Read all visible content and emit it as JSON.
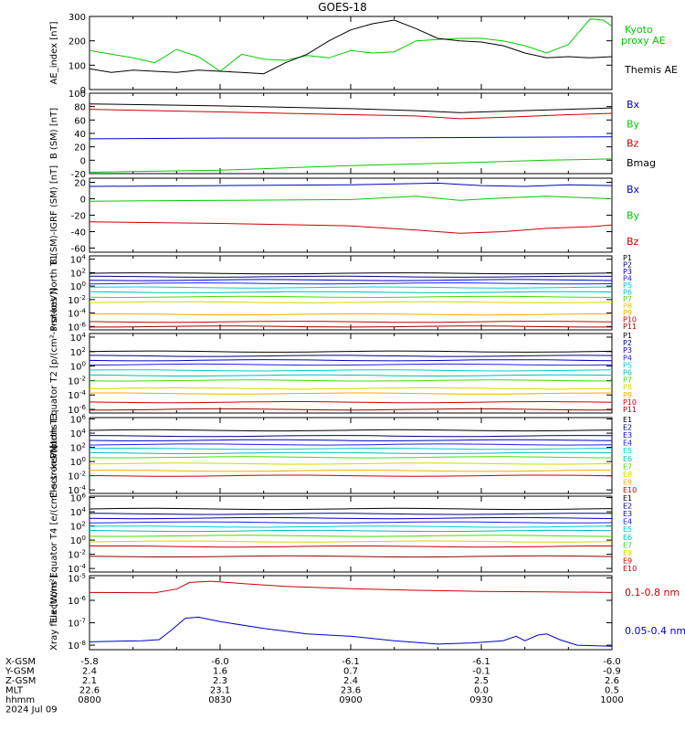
{
  "title": "GOES-18",
  "footer": {
    "row_labels": [
      "X-GSM",
      "Y-GSM",
      "Z-GSM",
      "MLT",
      "hhmm",
      "2024 Jul 09"
    ],
    "columns": [
      [
        "-5.8",
        "2.4",
        "2.1",
        "22.6",
        "0800"
      ],
      [
        "-6.0",
        "1.6",
        "2.3",
        "23.1",
        "0830"
      ],
      [
        "-6.1",
        "0.7",
        "2.4",
        "23.6",
        "0900"
      ],
      [
        "-6.1",
        "-0.1",
        "2.5",
        "0.0",
        "0930"
      ],
      [
        "-6.0",
        "-0.9",
        "2.6",
        "0.5",
        "1000"
      ]
    ]
  },
  "colors": {
    "black": "#000000",
    "green": "#00cc00",
    "blue": "#0000cc",
    "red": "#cc0000",
    "navy": "#000080",
    "purple": "#880088",
    "royal": "#2020ee",
    "cyan": "#00cccc",
    "teal": "#00bbbb",
    "lime": "#44dd00",
    "yellow": "#d6d600",
    "orange": "#ffaa00",
    "maroon": "#990000"
  },
  "chart_data": [
    {
      "type": "line",
      "title": "",
      "ylabel": "AE_index [nT]",
      "x_time_range": [
        "0800",
        "1000"
      ],
      "ylim": [
        0,
        300
      ],
      "yticks": [
        "0",
        "100",
        "200",
        "300"
      ],
      "series": [
        {
          "name": "Kyoto proxy AE",
          "color": "green",
          "values": [
            [
              0,
              160
            ],
            [
              5,
              145
            ],
            [
              10,
              130
            ],
            [
              15,
              110
            ],
            [
              20,
              165
            ],
            [
              25,
              135
            ],
            [
              30,
              75
            ],
            [
              35,
              145
            ],
            [
              40,
              125
            ],
            [
              45,
              120
            ],
            [
              50,
              140
            ],
            [
              55,
              130
            ],
            [
              60,
              160
            ],
            [
              65,
              150
            ],
            [
              70,
              155
            ],
            [
              75,
              200
            ],
            [
              80,
              205
            ],
            [
              85,
              210
            ],
            [
              90,
              210
            ],
            [
              95,
              200
            ],
            [
              100,
              180
            ],
            [
              105,
              150
            ],
            [
              110,
              185
            ],
            [
              115,
              290
            ],
            [
              118,
              285
            ],
            [
              120,
              260
            ]
          ]
        },
        {
          "name": "Themis AE",
          "color": "black",
          "values": [
            [
              0,
              85
            ],
            [
              5,
              70
            ],
            [
              10,
              80
            ],
            [
              15,
              75
            ],
            [
              20,
              70
            ],
            [
              25,
              80
            ],
            [
              30,
              75
            ],
            [
              35,
              70
            ],
            [
              40,
              65
            ],
            [
              45,
              110
            ],
            [
              50,
              145
            ],
            [
              55,
              200
            ],
            [
              60,
              245
            ],
            [
              65,
              270
            ],
            [
              70,
              285
            ],
            [
              75,
              250
            ],
            [
              80,
              210
            ],
            [
              85,
              200
            ],
            [
              90,
              195
            ],
            [
              95,
              180
            ],
            [
              100,
              150
            ],
            [
              105,
              130
            ],
            [
              110,
              135
            ],
            [
              115,
              130
            ],
            [
              120,
              135
            ]
          ]
        }
      ]
    },
    {
      "type": "line",
      "ylabel": "B (SM) [nT]",
      "ylim": [
        -20,
        100
      ],
      "yticks": [
        "-20",
        "0",
        "20",
        "40",
        "60",
        "80",
        "100"
      ],
      "series": [
        {
          "name": "Bx",
          "color": "blue",
          "values": [
            [
              0,
              32
            ],
            [
              30,
              33
            ],
            [
              60,
              33
            ],
            [
              90,
              34
            ],
            [
              120,
              35
            ]
          ]
        },
        {
          "name": "By",
          "color": "green",
          "values": [
            [
              0,
              -18
            ],
            [
              30,
              -15
            ],
            [
              60,
              -8
            ],
            [
              90,
              -3
            ],
            [
              105,
              0
            ],
            [
              120,
              2
            ]
          ]
        },
        {
          "name": "Bz",
          "color": "red",
          "values": [
            [
              0,
              76
            ],
            [
              30,
              72
            ],
            [
              60,
              68
            ],
            [
              75,
              66
            ],
            [
              85,
              62
            ],
            [
              95,
              64
            ],
            [
              110,
              68
            ],
            [
              120,
              70
            ]
          ]
        },
        {
          "name": "Bmag",
          "color": "black",
          "values": [
            [
              0,
              84
            ],
            [
              30,
              81
            ],
            [
              60,
              77
            ],
            [
              75,
              74
            ],
            [
              85,
              71
            ],
            [
              95,
              73
            ],
            [
              110,
              76
            ],
            [
              120,
              78
            ]
          ]
        }
      ]
    },
    {
      "type": "line",
      "ylabel": "B (SM)-IGRF (SM) [nT]",
      "ylim": [
        -65,
        25
      ],
      "yticks": [
        "-60",
        "-40",
        "-20",
        "0",
        "20"
      ],
      "series": [
        {
          "name": "Bx",
          "color": "blue",
          "values": [
            [
              0,
              15
            ],
            [
              30,
              16
            ],
            [
              60,
              17
            ],
            [
              80,
              19
            ],
            [
              90,
              16
            ],
            [
              100,
              15
            ],
            [
              110,
              17
            ],
            [
              120,
              16
            ]
          ]
        },
        {
          "name": "By",
          "color": "green",
          "values": [
            [
              0,
              -3
            ],
            [
              30,
              -2
            ],
            [
              60,
              -1
            ],
            [
              75,
              3
            ],
            [
              85,
              -2
            ],
            [
              95,
              1
            ],
            [
              105,
              3
            ],
            [
              120,
              0
            ]
          ]
        },
        {
          "name": "Bz",
          "color": "red",
          "values": [
            [
              0,
              -28
            ],
            [
              30,
              -30
            ],
            [
              60,
              -33
            ],
            [
              75,
              -38
            ],
            [
              85,
              -42
            ],
            [
              95,
              -40
            ],
            [
              105,
              -36
            ],
            [
              115,
              -34
            ],
            [
              120,
              -32
            ]
          ]
        }
      ]
    },
    {
      "type": "line",
      "ylabel": "Protons North T1",
      "log": true,
      "ylim_exp": [
        -6.5,
        4.5
      ],
      "yticks": [
        "10^4",
        "10^2",
        "10^0",
        "10^-2",
        "10^-4",
        "10^-6"
      ],
      "channels": [
        {
          "name": "P1",
          "color": "black",
          "log_value": 1.9
        },
        {
          "name": "P2",
          "color": "navy",
          "log_value": 1.4
        },
        {
          "name": "P3",
          "color": "blue",
          "log_value": 0.9
        },
        {
          "name": "P4",
          "color": "royal",
          "log_value": 0.4
        },
        {
          "name": "P5",
          "color": "cyan",
          "log_value": -0.2
        },
        {
          "name": "P6",
          "color": "teal",
          "log_value": -0.9
        },
        {
          "name": "P7",
          "color": "lime",
          "log_value": -1.6
        },
        {
          "name": "P8",
          "color": "yellow",
          "log_value": -2.4
        },
        {
          "name": "P9",
          "color": "orange",
          "log_value": -4.2
        },
        {
          "name": "P10",
          "color": "red",
          "log_value": -5.3
        },
        {
          "name": "P11",
          "color": "maroon",
          "log_value": -6.0
        }
      ]
    },
    {
      "type": "line",
      "ylabel": "Protons Equator T2 [p/(cm²-s-sr-keV)]",
      "log": true,
      "ylim_exp": [
        -6.5,
        4.5
      ],
      "yticks": [
        "10^4",
        "10^2",
        "10^0",
        "10^-2",
        "10^-4",
        "10^-6"
      ],
      "channels": [
        {
          "name": "P1",
          "color": "black",
          "log_value": 2.0
        },
        {
          "name": "P2",
          "color": "navy",
          "log_value": 1.4
        },
        {
          "name": "P3",
          "color": "blue",
          "log_value": 0.8
        },
        {
          "name": "P4",
          "color": "royal",
          "log_value": 0.2
        },
        {
          "name": "P5",
          "color": "cyan",
          "log_value": -0.6
        },
        {
          "name": "P6",
          "color": "teal",
          "log_value": -1.3
        },
        {
          "name": "P7",
          "color": "lime",
          "log_value": -2.0
        },
        {
          "name": "P8",
          "color": "yellow",
          "log_value": -3.1
        },
        {
          "name": "P9",
          "color": "orange",
          "log_value": -3.8
        },
        {
          "name": "P10",
          "color": "red",
          "log_value": -5.0
        },
        {
          "name": "P11",
          "color": "maroon",
          "log_value": -6.0
        }
      ]
    },
    {
      "type": "line",
      "ylabel": "Electrons North T3",
      "log": true,
      "ylim_exp": [
        -4.5,
        6.2
      ],
      "yticks": [
        "10^6",
        "10^4",
        "10^2",
        "10^0",
        "10^-2",
        "10^-4"
      ],
      "channels": [
        {
          "name": "E1",
          "color": "black",
          "log_value": 4.4
        },
        {
          "name": "E2",
          "color": "navy",
          "log_value": 3.6
        },
        {
          "name": "E3",
          "color": "blue",
          "log_value": 3.0
        },
        {
          "name": "E4",
          "color": "royal",
          "log_value": 2.4
        },
        {
          "name": "E5",
          "color": "cyan",
          "log_value": 1.8
        },
        {
          "name": "E6",
          "color": "teal",
          "log_value": 1.2
        },
        {
          "name": "E7",
          "color": "lime",
          "log_value": 0.6
        },
        {
          "name": "E8",
          "color": "yellow",
          "log_value": -0.3
        },
        {
          "name": "E9",
          "color": "orange",
          "log_value": -1.3
        },
        {
          "name": "E10",
          "color": "red",
          "log_value": -2.0
        }
      ]
    },
    {
      "type": "line",
      "ylabel": "Electrons Equator T4 [e/(cm²-s-sr-keV)]",
      "log": true,
      "ylim_exp": [
        -4.5,
        6.2
      ],
      "yticks": [
        "10^6",
        "10^4",
        "10^2",
        "10^0",
        "10^-2",
        "10^-4"
      ],
      "channels": [
        {
          "name": "E1",
          "color": "black",
          "log_value": 4.4
        },
        {
          "name": "E2",
          "color": "navy",
          "log_value": 3.7
        },
        {
          "name": "E3",
          "color": "blue",
          "log_value": 3.1
        },
        {
          "name": "E4",
          "color": "royal",
          "log_value": 2.5
        },
        {
          "name": "E5",
          "color": "cyan",
          "log_value": 1.9
        },
        {
          "name": "E6",
          "color": "teal",
          "log_value": 1.3
        },
        {
          "name": "E7",
          "color": "lime",
          "log_value": 0.6
        },
        {
          "name": "E8",
          "color": "yellow",
          "log_value": -0.2
        },
        {
          "name": "E9",
          "color": "red",
          "log_value": -0.9
        },
        {
          "name": "E10",
          "color": "maroon",
          "log_value": -2.3
        }
      ]
    },
    {
      "type": "line",
      "ylabel": "Xray flux [W/m²]",
      "log": true,
      "ylim_exp": [
        -8.2,
        -4.9
      ],
      "yticks": [
        "10^-5",
        "10^-6",
        "10^-7",
        "10^-8"
      ],
      "series": [
        {
          "name": "0.1-0.8 nm",
          "color": "red",
          "log_values": [
            [
              0,
              -5.65
            ],
            [
              15,
              -5.66
            ],
            [
              20,
              -5.5
            ],
            [
              23,
              -5.2
            ],
            [
              28,
              -5.15
            ],
            [
              35,
              -5.25
            ],
            [
              45,
              -5.38
            ],
            [
              60,
              -5.48
            ],
            [
              75,
              -5.55
            ],
            [
              90,
              -5.6
            ],
            [
              105,
              -5.62
            ],
            [
              120,
              -5.65
            ]
          ]
        },
        {
          "name": "0.05-0.4 nm",
          "color": "blue",
          "log_values": [
            [
              0,
              -7.85
            ],
            [
              12,
              -7.8
            ],
            [
              16,
              -7.75
            ],
            [
              19,
              -7.3
            ],
            [
              22,
              -6.8
            ],
            [
              25,
              -6.75
            ],
            [
              30,
              -6.95
            ],
            [
              40,
              -7.25
            ],
            [
              50,
              -7.5
            ],
            [
              60,
              -7.6
            ],
            [
              70,
              -7.8
            ],
            [
              80,
              -7.95
            ],
            [
              88,
              -7.9
            ],
            [
              95,
              -7.8
            ],
            [
              98,
              -7.6
            ],
            [
              100,
              -7.8
            ],
            [
              103,
              -7.55
            ],
            [
              105,
              -7.5
            ],
            [
              108,
              -7.75
            ],
            [
              112,
              -8.0
            ],
            [
              120,
              -8.05
            ]
          ]
        }
      ]
    }
  ]
}
